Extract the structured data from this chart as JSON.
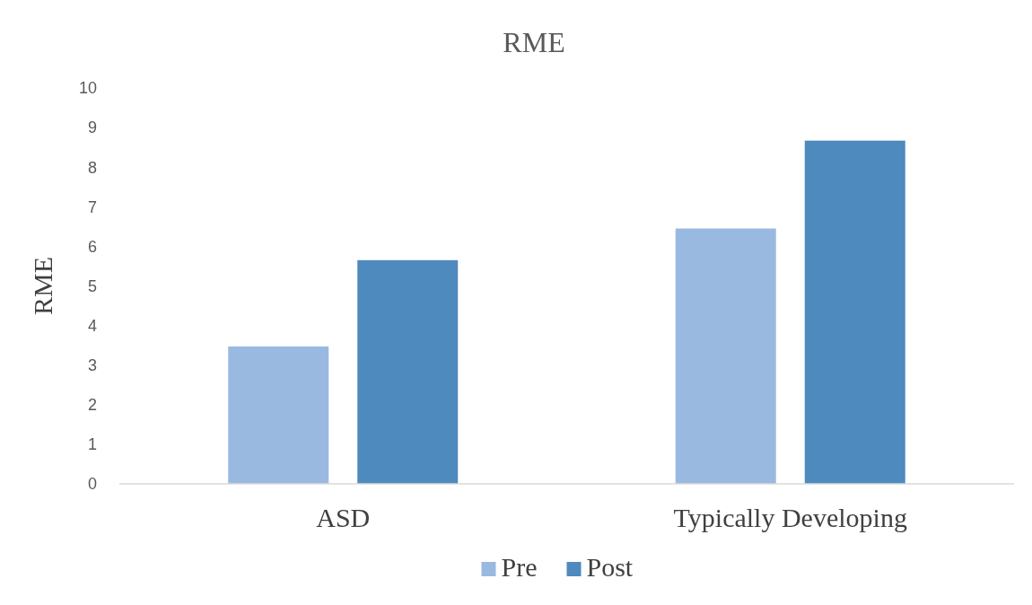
{
  "chart_data": {
    "type": "bar",
    "title": "RME",
    "ylabel": "RME",
    "categories": [
      "ASD",
      "Typically Developing"
    ],
    "series": [
      {
        "name": "Pre",
        "color": "#9ab9e0",
        "values": [
          3.47,
          6.45
        ]
      },
      {
        "name": "Post",
        "color": "#4f8abe",
        "values": [
          5.65,
          8.67
        ]
      }
    ],
    "ylim": [
      0,
      10
    ],
    "yticks": [
      0,
      1,
      2,
      3,
      4,
      5,
      6,
      7,
      8,
      9,
      10
    ],
    "grid": false,
    "legend": "bottom"
  }
}
